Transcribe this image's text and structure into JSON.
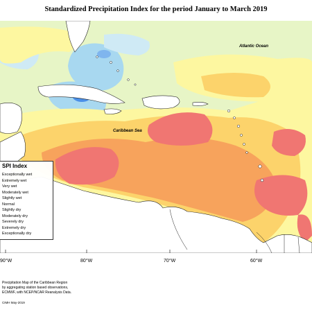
{
  "title": "Standardized Precipitation Index for the period January to March 2019",
  "labels": {
    "ocean": "Atlantic Ocean",
    "sea": "Caribbean Sea"
  },
  "legend": {
    "title": "SPI Index",
    "items": [
      "Exceptionally wet",
      "Extremely wet",
      "Very wet",
      "Moderately wet",
      "Slightly wet",
      "Normal",
      "Slightly dry",
      "Moderately dry",
      "Severely dry",
      "Extremely dry",
      "Exceptionally dry"
    ]
  },
  "longitudes": [
    "90°W",
    "80°W",
    "70°W",
    "60°W"
  ],
  "notes": [
    "Precipitation Map of the Caribbean Region",
    "by aggregating station based observations,",
    "ECMWF, with NCEP/NCAR Reanalysis Data."
  ],
  "credit": "CIMH May-2019",
  "colors": {
    "wet_blue": "#4a8fe7",
    "wet_light": "#a8d8f0",
    "normal": "#e7f5c6",
    "slightly_dry": "#fdf7a0",
    "moderately_dry": "#fcd36b",
    "severely_dry": "#f7a35c",
    "extremely_dry": "#f07672"
  }
}
